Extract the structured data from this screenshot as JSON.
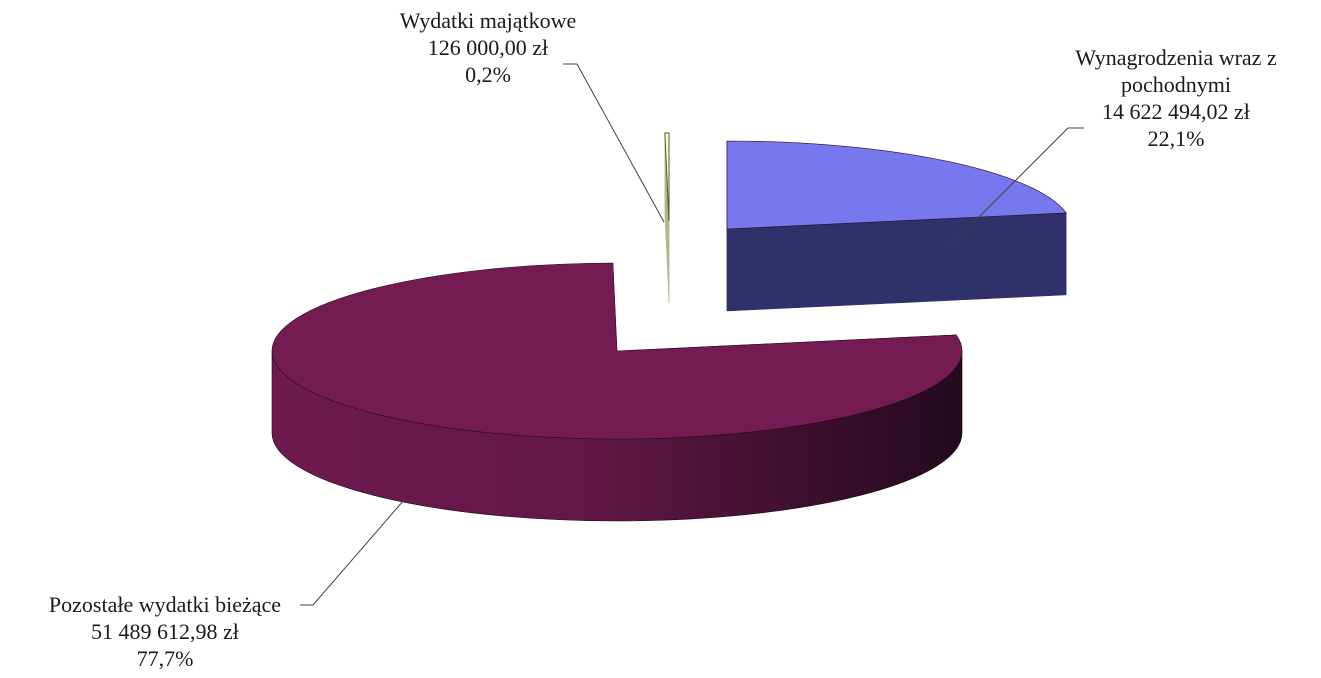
{
  "chart_data": {
    "type": "pie",
    "style": "3d-exploded",
    "title": "",
    "legend": "none",
    "slices": [
      {
        "name": "Wynagrodzenia wraz z pochodnymi",
        "label_lines": [
          "Wynagrodzenia  wraz z",
          "pochodnymi"
        ],
        "value": 14622494.02,
        "value_label": "14 622 494,02 zł",
        "percent": 22.1,
        "percent_label": "22,1%",
        "color_top": "#7777ee",
        "color_side": "#30306a"
      },
      {
        "name": "Pozostałe wydatki bieżące",
        "label_lines": [
          "Pozostałe wydatki  bieżące"
        ],
        "value": 51489612.98,
        "value_label": "51 489 612,98 zł",
        "percent": 77.7,
        "percent_label": "77,7%",
        "color_top": "#741b54",
        "color_side": "#611747"
      },
      {
        "name": "Wydatki majątkowe",
        "label_lines": [
          "Wydatki  majątkowe"
        ],
        "value": 126000.0,
        "value_label": "126 000,00 zł",
        "percent": 0.2,
        "percent_label": "0,2%",
        "color_top": "#ffffcc",
        "color_side": "#b5b58a"
      }
    ]
  }
}
